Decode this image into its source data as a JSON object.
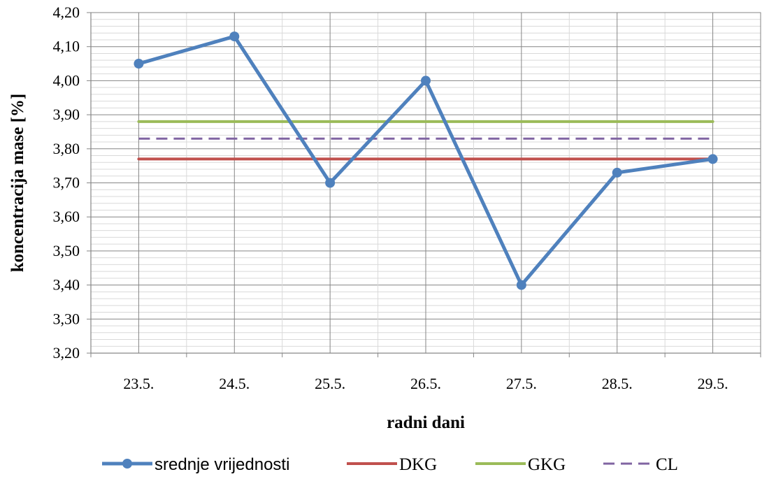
{
  "chart_data": {
    "type": "line",
    "title": "",
    "xlabel": "radni dani",
    "ylabel": "koncentracija mase [%]",
    "categories": [
      "23.5.",
      "24.5.",
      "25.5.",
      "26.5.",
      "27.5.",
      "28.5.",
      "29.5."
    ],
    "ylim": [
      3.2,
      4.2
    ],
    "y_ticks": [
      "3,20",
      "3,30",
      "3,40",
      "3,50",
      "3,60",
      "3,70",
      "3,80",
      "3,90",
      "4,00",
      "4,10",
      "4,20"
    ],
    "grid": true,
    "legend_position": "bottom",
    "series": [
      {
        "name": "srednje vrijednosti",
        "values": [
          4.05,
          4.13,
          3.7,
          4.0,
          3.4,
          3.73,
          3.77
        ],
        "color": "#4f81bd",
        "style": "solid",
        "markers": true
      },
      {
        "name": "DKG",
        "values": [
          3.77,
          3.77,
          3.77,
          3.77,
          3.77,
          3.77,
          3.77
        ],
        "color": "#c0504d",
        "style": "solid",
        "markers": false
      },
      {
        "name": "GKG",
        "values": [
          3.88,
          3.88,
          3.88,
          3.88,
          3.88,
          3.88,
          3.88
        ],
        "color": "#9bbb59",
        "style": "solid",
        "markers": false
      },
      {
        "name": "CL",
        "values": [
          3.83,
          3.83,
          3.83,
          3.83,
          3.83,
          3.83,
          3.83
        ],
        "color": "#8064a2",
        "style": "dashed",
        "markers": false
      }
    ]
  }
}
